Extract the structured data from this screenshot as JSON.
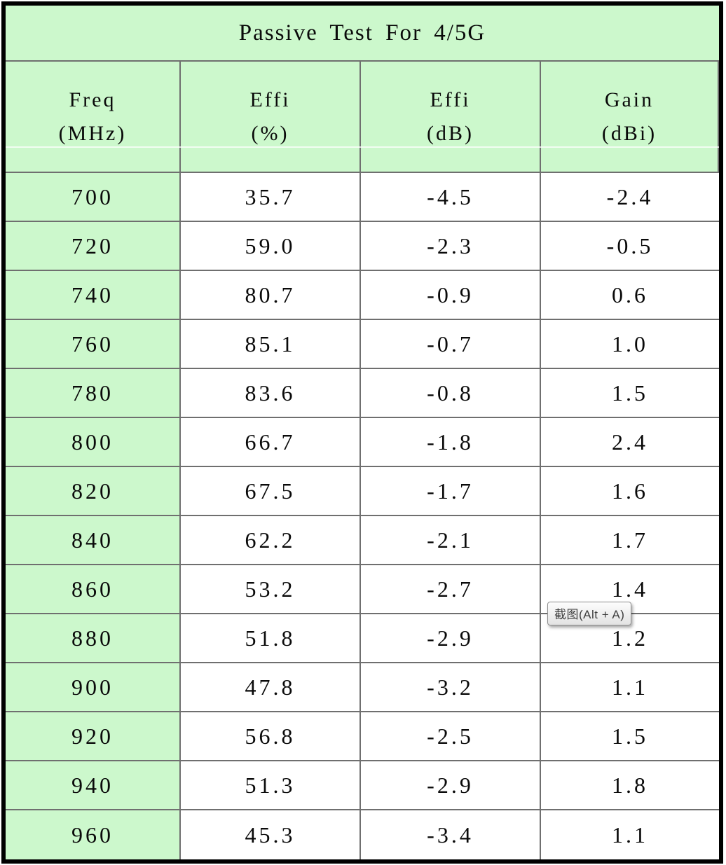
{
  "table": {
    "title": "Passive Test For 4/5G",
    "columns": [
      {
        "label": "Freq",
        "unit": "(MHz)"
      },
      {
        "label": "Effi",
        "unit": "(%)"
      },
      {
        "label": "Effi",
        "unit": "(dB)"
      },
      {
        "label": "Gain",
        "unit": "(dBi)"
      }
    ],
    "rows": [
      {
        "freq": "700",
        "effi_pct": "35.7",
        "effi_db": "-4.5",
        "gain_dbi": "-2.4"
      },
      {
        "freq": "720",
        "effi_pct": "59.0",
        "effi_db": "-2.3",
        "gain_dbi": "-0.5"
      },
      {
        "freq": "740",
        "effi_pct": "80.7",
        "effi_db": "-0.9",
        "gain_dbi": "0.6"
      },
      {
        "freq": "760",
        "effi_pct": "85.1",
        "effi_db": "-0.7",
        "gain_dbi": "1.0"
      },
      {
        "freq": "780",
        "effi_pct": "83.6",
        "effi_db": "-0.8",
        "gain_dbi": "1.5"
      },
      {
        "freq": "800",
        "effi_pct": "66.7",
        "effi_db": "-1.8",
        "gain_dbi": "2.4"
      },
      {
        "freq": "820",
        "effi_pct": "67.5",
        "effi_db": "-1.7",
        "gain_dbi": "1.6"
      },
      {
        "freq": "840",
        "effi_pct": "62.2",
        "effi_db": "-2.1",
        "gain_dbi": "1.7"
      },
      {
        "freq": "860",
        "effi_pct": "53.2",
        "effi_db": "-2.7",
        "gain_dbi": "1.4"
      },
      {
        "freq": "880",
        "effi_pct": "51.8",
        "effi_db": "-2.9",
        "gain_dbi": "1.2"
      },
      {
        "freq": "900",
        "effi_pct": "47.8",
        "effi_db": "-3.2",
        "gain_dbi": "1.1"
      },
      {
        "freq": "920",
        "effi_pct": "56.8",
        "effi_db": "-2.5",
        "gain_dbi": "1.5"
      },
      {
        "freq": "940",
        "effi_pct": "51.3",
        "effi_db": "-2.9",
        "gain_dbi": "1.8"
      },
      {
        "freq": "960",
        "effi_pct": "45.3",
        "effi_db": "-3.4",
        "gain_dbi": "1.1"
      }
    ]
  },
  "tooltip": {
    "text": "截图(Alt + A)"
  },
  "colors": {
    "cell_green": "#ccf8cc",
    "grid_line": "#6f6f6f",
    "outer_border": "#000000",
    "tooltip_text": "#3d3d3d"
  }
}
